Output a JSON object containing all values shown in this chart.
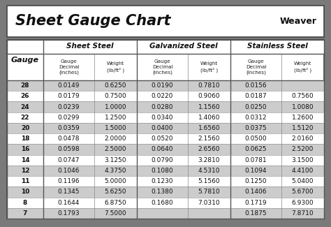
{
  "title": "Sheet Gauge Chart",
  "bg_outer": "#7a7a7a",
  "bg_white": "#ffffff",
  "row_light": "#ffffff",
  "row_dark": "#cccccc",
  "header_section_bg": "#ffffff",
  "gauges": [
    28,
    26,
    24,
    22,
    20,
    18,
    16,
    14,
    12,
    11,
    10,
    8,
    7
  ],
  "sheet_steel_dec": [
    "0.0149",
    "0.0179",
    "0.0239",
    "0.0299",
    "0.0359",
    "0.0478",
    "0.0598",
    "0.0747",
    "0.1046",
    "0.1196",
    "0.1345",
    "0.1644",
    "0.1793"
  ],
  "sheet_steel_wt": [
    "0.6250",
    "0.7500",
    "1.0000",
    "1.2500",
    "1.5000",
    "2.0000",
    "2.5000",
    "3.1250",
    "4.3750",
    "5.0000",
    "5.6250",
    "6.8750",
    "7.5000"
  ],
  "galv_dec": [
    "0.0190",
    "0.0220",
    "0.0280",
    "0.0340",
    "0.0400",
    "0.0520",
    "0.0640",
    "0.0790",
    "0.1080",
    "0.1230",
    "0.1380",
    "0.1680",
    ""
  ],
  "galv_wt": [
    "0.7810",
    "0.9060",
    "1.1560",
    "1.4060",
    "1.6560",
    "2.1560",
    "2.6560",
    "3.2810",
    "4.5310",
    "5.1560",
    "5.7810",
    "7.0310",
    ""
  ],
  "ss_dec": [
    "0.0156",
    "0.0187",
    "0.0250",
    "0.0312",
    "0.0375",
    "0.0500",
    "0.0625",
    "0.0781",
    "0.1094",
    "0.1250",
    "0.1406",
    "0.1719",
    "0.1875"
  ],
  "ss_wt": [
    "",
    "0.7560",
    "1.0080",
    "1.2600",
    "1.5120",
    "2.0160",
    "2.5200",
    "3.1500",
    "4.4100",
    "5.0400",
    "5.6700",
    "6.9300",
    "7.8710"
  ],
  "fig_w": 4.74,
  "fig_h": 3.25,
  "dpi": 100
}
